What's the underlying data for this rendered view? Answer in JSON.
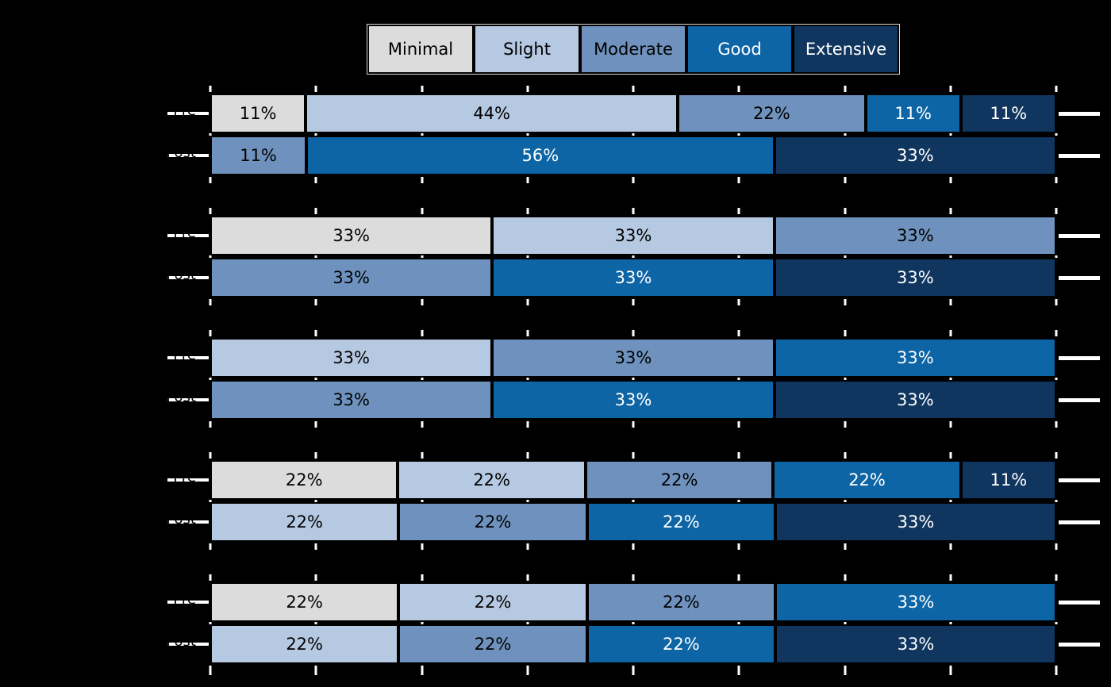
{
  "legend": {
    "items": [
      {
        "label": "Minimal",
        "color": "#dcdcdc",
        "text_color": "#000000"
      },
      {
        "label": "Slight",
        "color": "#b6c9e2",
        "text_color": "#000000"
      },
      {
        "label": "Moderate",
        "color": "#6e92bd",
        "text_color": "#000000"
      },
      {
        "label": "Good",
        "color": "#0d65a5",
        "text_color": "#ffffff"
      },
      {
        "label": "Extensive",
        "color": "#10365f",
        "text_color": "#ffffff"
      }
    ]
  },
  "chart_data": {
    "type": "bar",
    "orientation": "horizontal",
    "stacked": true,
    "title": "",
    "categories": [
      "Minimal",
      "Slight",
      "Moderate",
      "Good",
      "Extensive"
    ],
    "category_colors": {
      "Minimal": "#dcdcdc",
      "Slight": "#b6c9e2",
      "Moderate": "#6e92bd",
      "Good": "#0d65a5",
      "Extensive": "#10365f"
    },
    "category_text_colors": {
      "Minimal": "#000000",
      "Slight": "#000000",
      "Moderate": "#000000",
      "Good": "#ffffff",
      "Extensive": "#ffffff"
    },
    "x_axis": {
      "min_percent": 0,
      "max_percent": 100,
      "tick_interval_percent": 12.5,
      "tick_count": 9,
      "tick_labels_visible": false,
      "tick_color": "#ffffff"
    },
    "row_labels": [
      "Pre",
      "Post"
    ],
    "groups": [
      {
        "rows": [
          {
            "label": "Pre",
            "segments": [
              {
                "category": "Minimal",
                "ninths": 1,
                "label": "11%"
              },
              {
                "category": "Slight",
                "ninths": 4,
                "label": "44%"
              },
              {
                "category": "Moderate",
                "ninths": 2,
                "label": "22%"
              },
              {
                "category": "Good",
                "ninths": 1,
                "label": "11%"
              },
              {
                "category": "Extensive",
                "ninths": 1,
                "label": "11%"
              }
            ]
          },
          {
            "label": "Post",
            "segments": [
              {
                "category": "Moderate",
                "ninths": 1,
                "label": "11%"
              },
              {
                "category": "Good",
                "ninths": 5,
                "label": "56%"
              },
              {
                "category": "Extensive",
                "ninths": 3,
                "label": "33%"
              }
            ]
          }
        ]
      },
      {
        "rows": [
          {
            "label": "Pre",
            "segments": [
              {
                "category": "Minimal",
                "ninths": 3,
                "label": "33%"
              },
              {
                "category": "Slight",
                "ninths": 3,
                "label": "33%"
              },
              {
                "category": "Moderate",
                "ninths": 3,
                "label": "33%"
              }
            ]
          },
          {
            "label": "Post",
            "segments": [
              {
                "category": "Moderate",
                "ninths": 3,
                "label": "33%"
              },
              {
                "category": "Good",
                "ninths": 3,
                "label": "33%"
              },
              {
                "category": "Extensive",
                "ninths": 3,
                "label": "33%"
              }
            ]
          }
        ]
      },
      {
        "rows": [
          {
            "label": "Pre",
            "segments": [
              {
                "category": "Slight",
                "ninths": 3,
                "label": "33%"
              },
              {
                "category": "Moderate",
                "ninths": 3,
                "label": "33%"
              },
              {
                "category": "Good",
                "ninths": 3,
                "label": "33%"
              }
            ]
          },
          {
            "label": "Post",
            "segments": [
              {
                "category": "Moderate",
                "ninths": 3,
                "label": "33%"
              },
              {
                "category": "Good",
                "ninths": 3,
                "label": "33%"
              },
              {
                "category": "Extensive",
                "ninths": 3,
                "label": "33%"
              }
            ]
          }
        ]
      },
      {
        "rows": [
          {
            "label": "Pre",
            "segments": [
              {
                "category": "Minimal",
                "ninths": 2,
                "label": "22%"
              },
              {
                "category": "Slight",
                "ninths": 2,
                "label": "22%"
              },
              {
                "category": "Moderate",
                "ninths": 2,
                "label": "22%"
              },
              {
                "category": "Good",
                "ninths": 2,
                "label": "22%"
              },
              {
                "category": "Extensive",
                "ninths": 1,
                "label": "11%"
              }
            ]
          },
          {
            "label": "Post",
            "segments": [
              {
                "category": "Slight",
                "ninths": 2,
                "label": "22%"
              },
              {
                "category": "Moderate",
                "ninths": 2,
                "label": "22%"
              },
              {
                "category": "Good",
                "ninths": 2,
                "label": "22%"
              },
              {
                "category": "Extensive",
                "ninths": 3,
                "label": "33%"
              }
            ]
          }
        ]
      },
      {
        "rows": [
          {
            "label": "Pre",
            "segments": [
              {
                "category": "Minimal",
                "ninths": 2,
                "label": "22%"
              },
              {
                "category": "Slight",
                "ninths": 2,
                "label": "22%"
              },
              {
                "category": "Moderate",
                "ninths": 2,
                "label": "22%"
              },
              {
                "category": "Good",
                "ninths": 3,
                "label": "33%"
              }
            ]
          },
          {
            "label": "Post",
            "segments": [
              {
                "category": "Slight",
                "ninths": 2,
                "label": "22%"
              },
              {
                "category": "Moderate",
                "ninths": 2,
                "label": "22%"
              },
              {
                "category": "Good",
                "ninths": 2,
                "label": "22%"
              },
              {
                "category": "Extensive",
                "ninths": 3,
                "label": "33%"
              }
            ]
          }
        ]
      }
    ]
  }
}
